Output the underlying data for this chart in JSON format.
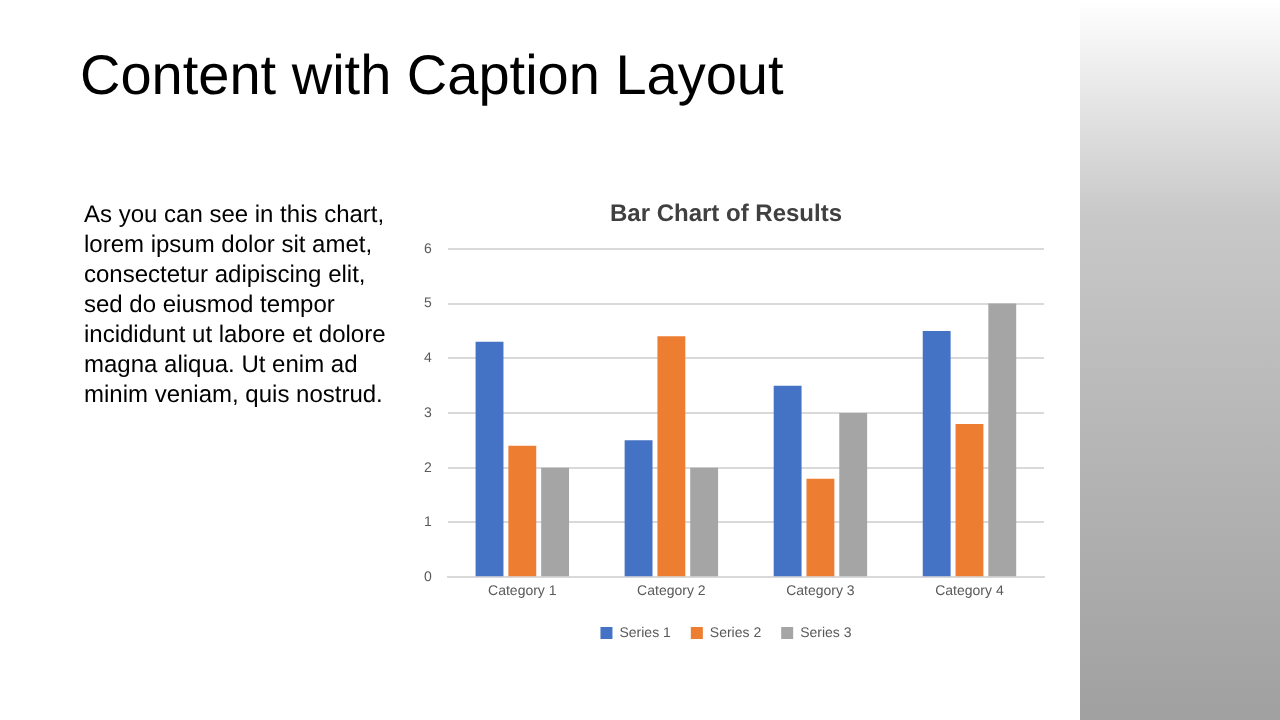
{
  "chart_data": {
    "type": "bar",
    "title": "Bar Chart of Results",
    "categories": [
      "Category 1",
      "Category 2",
      "Category 3",
      "Category 4"
    ],
    "series": [
      {
        "name": "Series 1",
        "color": "#4472c4",
        "values": [
          4.3,
          2.5,
          3.5,
          4.5
        ]
      },
      {
        "name": "Series 2",
        "color": "#ed7d31",
        "values": [
          2.4,
          4.4,
          1.8,
          2.8
        ]
      },
      {
        "name": "Series 3",
        "color": "#a5a5a5",
        "values": [
          2,
          2,
          3,
          5
        ]
      }
    ],
    "ylim": [
      0,
      6
    ],
    "yticks": [
      0,
      1,
      2,
      3,
      4,
      5,
      6
    ],
    "grid": "y",
    "legend": "bottom",
    "annotations": [
      "Content with Caption Layout",
      "As you can see in this chart, lorem ipsum dolor sit amet, consectetur adipiscing elit, sed do eiusmod tempor incididunt ut labore et dolore magna aliqua. Ut enim ad minim veniam, quis nostrud."
    ]
  }
}
